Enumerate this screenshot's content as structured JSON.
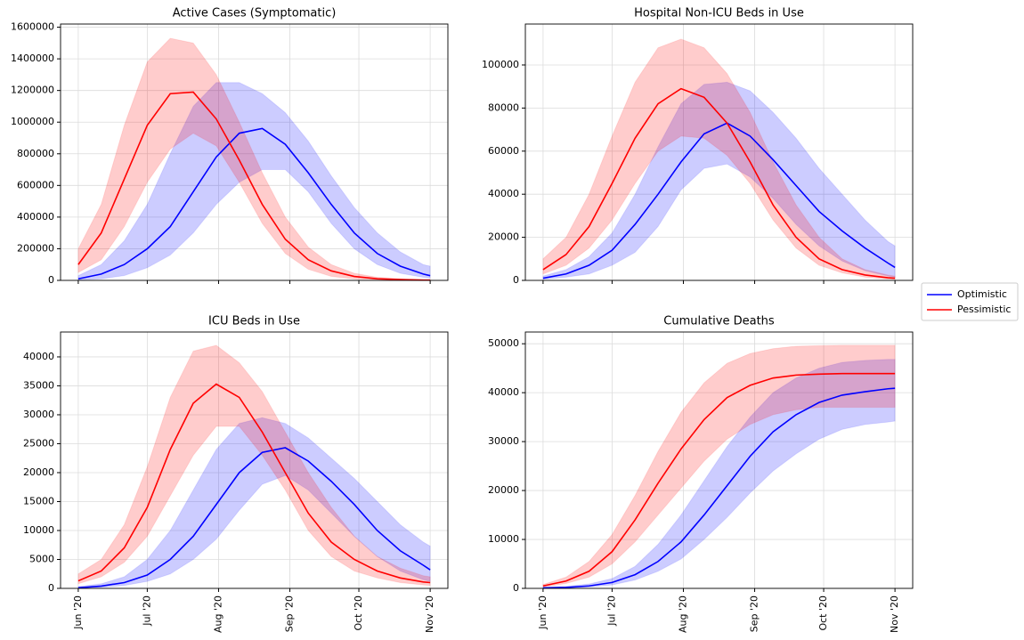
{
  "chart_data": [
    {
      "type": "line",
      "title": "Active Cases (Symptomatic)",
      "x": [
        0,
        10,
        20,
        30,
        40,
        50,
        60,
        70,
        80,
        90,
        100,
        110,
        120,
        130,
        140,
        150,
        153
      ],
      "xlim": [
        -7.7,
        160.7
      ],
      "ylim": [
        0,
        1620000
      ],
      "yticks": [
        0,
        200000,
        400000,
        600000,
        800000,
        1000000,
        1200000,
        1400000,
        1600000
      ],
      "grid": true,
      "series": [
        {
          "name": "Optimistic",
          "color": "#0000ff",
          "values": [
            10000,
            40000,
            100000,
            200000,
            340000,
            560000,
            780000,
            930000,
            960000,
            860000,
            680000,
            480000,
            300000,
            170000,
            90000,
            40000,
            30000
          ],
          "lower": [
            3000,
            10000,
            30000,
            80000,
            160000,
            300000,
            480000,
            620000,
            700000,
            700000,
            560000,
            360000,
            200000,
            100000,
            45000,
            20000,
            15000
          ],
          "upper": [
            30000,
            100000,
            250000,
            480000,
            800000,
            1100000,
            1250000,
            1250000,
            1180000,
            1060000,
            880000,
            660000,
            460000,
            300000,
            180000,
            100000,
            90000
          ]
        },
        {
          "name": "Pessimistic",
          "color": "#ff0000",
          "values": [
            100000,
            300000,
            640000,
            980000,
            1180000,
            1190000,
            1020000,
            760000,
            480000,
            260000,
            130000,
            60000,
            25000,
            10000,
            5000,
            2000,
            2000
          ],
          "lower": [
            50000,
            130000,
            340000,
            620000,
            830000,
            930000,
            850000,
            620000,
            360000,
            170000,
            70000,
            25000,
            10000,
            4000,
            2000,
            1000,
            1000
          ],
          "upper": [
            200000,
            480000,
            980000,
            1380000,
            1530000,
            1500000,
            1300000,
            1000000,
            680000,
            400000,
            210000,
            100000,
            45000,
            20000,
            10000,
            5000,
            4000
          ]
        }
      ]
    },
    {
      "type": "line",
      "title": "Hospital Non-ICU Beds in Use",
      "x": [
        0,
        10,
        20,
        30,
        40,
        50,
        60,
        70,
        80,
        90,
        100,
        110,
        120,
        130,
        140,
        150,
        153
      ],
      "xlim": [
        -7.7,
        160.7
      ],
      "ylim": [
        0,
        119000
      ],
      "yticks": [
        0,
        20000,
        40000,
        60000,
        80000,
        100000
      ],
      "grid": true,
      "series": [
        {
          "name": "Optimistic",
          "color": "#0000ff",
          "values": [
            1000,
            3000,
            7000,
            14000,
            26000,
            40000,
            55000,
            68000,
            73000,
            67000,
            56000,
            44000,
            32000,
            23000,
            15000,
            8000,
            6000
          ],
          "lower": [
            500,
            1500,
            3000,
            7000,
            13000,
            25000,
            42000,
            52000,
            54000,
            48000,
            38000,
            26000,
            16000,
            9000,
            4500,
            2000,
            1500
          ],
          "upper": [
            2000,
            5000,
            11000,
            22000,
            40000,
            62000,
            82000,
            91000,
            92000,
            88000,
            78000,
            66000,
            52000,
            40000,
            28000,
            18000,
            16000
          ]
        },
        {
          "name": "Pessimistic",
          "color": "#ff0000",
          "values": [
            5000,
            12000,
            25000,
            45000,
            66000,
            82000,
            89000,
            85000,
            73000,
            55000,
            35000,
            20000,
            10000,
            5000,
            2500,
            1200,
            1000
          ],
          "lower": [
            3000,
            7000,
            15000,
            28000,
            45000,
            60000,
            67000,
            66000,
            58000,
            45000,
            28000,
            15000,
            7000,
            3500,
            1500,
            600,
            500
          ],
          "upper": [
            10000,
            20000,
            40000,
            67000,
            92000,
            108000,
            112000,
            108000,
            96000,
            78000,
            55000,
            35000,
            20000,
            10000,
            5000,
            2500,
            2000
          ]
        }
      ]
    },
    {
      "type": "line",
      "title": "ICU Beds in Use",
      "x": [
        0,
        10,
        20,
        30,
        40,
        50,
        60,
        70,
        80,
        90,
        100,
        110,
        120,
        130,
        140,
        150,
        153
      ],
      "xlim": [
        -7.7,
        160.7
      ],
      "ylim": [
        0,
        44300
      ],
      "xticks": [
        {
          "value": 0,
          "label": "Jun '20"
        },
        {
          "value": 30,
          "label": "Jul '20"
        },
        {
          "value": 61,
          "label": "Aug '20"
        },
        {
          "value": 92,
          "label": "Sep '20"
        },
        {
          "value": 122,
          "label": "Oct '20"
        },
        {
          "value": 153,
          "label": "Nov '20"
        }
      ],
      "yticks": [
        0,
        5000,
        10000,
        15000,
        20000,
        25000,
        30000,
        35000,
        40000
      ],
      "grid": true,
      "series": [
        {
          "name": "Optimistic",
          "color": "#0000ff",
          "values": [
            100,
            400,
            1000,
            2300,
            5000,
            9000,
            14500,
            20000,
            23500,
            24300,
            22000,
            18500,
            14500,
            10000,
            6500,
            4000,
            3200
          ],
          "lower": [
            50,
            200,
            500,
            1200,
            2500,
            5000,
            8500,
            13500,
            18000,
            19500,
            17000,
            13000,
            9000,
            5500,
            3000,
            1500,
            1200
          ],
          "upper": [
            300,
            800,
            2000,
            5000,
            10000,
            17000,
            24000,
            28500,
            29500,
            28500,
            26000,
            22500,
            19000,
            15000,
            11000,
            8000,
            7300
          ]
        },
        {
          "name": "Pessimistic",
          "color": "#ff0000",
          "values": [
            1300,
            3000,
            7000,
            14000,
            24000,
            32000,
            35300,
            33000,
            27000,
            20000,
            13000,
            8000,
            5000,
            3000,
            1800,
            1100,
            1000
          ],
          "lower": [
            800,
            2000,
            4500,
            9000,
            16000,
            23000,
            28000,
            28000,
            23000,
            17000,
            10000,
            5500,
            3000,
            1800,
            1000,
            600,
            500
          ],
          "upper": [
            2500,
            5000,
            11000,
            21000,
            33000,
            41000,
            42000,
            39000,
            34000,
            27000,
            20000,
            14000,
            9000,
            5500,
            3500,
            2200,
            2000
          ]
        }
      ]
    },
    {
      "type": "line",
      "title": "Cumulative Deaths",
      "x": [
        0,
        10,
        20,
        30,
        40,
        50,
        60,
        70,
        80,
        90,
        100,
        110,
        120,
        130,
        140,
        150,
        153
      ],
      "xlim": [
        -7.7,
        160.7
      ],
      "ylim": [
        0,
        52400
      ],
      "xticks": [
        {
          "value": 0,
          "label": "Jun '20"
        },
        {
          "value": 30,
          "label": "Jul '20"
        },
        {
          "value": 61,
          "label": "Aug '20"
        },
        {
          "value": 92,
          "label": "Sep '20"
        },
        {
          "value": 122,
          "label": "Oct '20"
        },
        {
          "value": 153,
          "label": "Nov '20"
        }
      ],
      "yticks": [
        0,
        10000,
        20000,
        30000,
        40000,
        50000
      ],
      "grid": true,
      "series": [
        {
          "name": "Optimistic",
          "color": "#0000ff",
          "values": [
            100,
            200,
            500,
            1200,
            2800,
            5500,
            9500,
            15000,
            21000,
            27000,
            32000,
            35500,
            38000,
            39500,
            40200,
            40800,
            40900
          ],
          "lower": [
            50,
            100,
            300,
            700,
            1700,
            3500,
            6000,
            10000,
            14500,
            19500,
            24000,
            27500,
            30500,
            32500,
            33500,
            34000,
            34200
          ],
          "upper": [
            200,
            400,
            900,
            2000,
            4500,
            9000,
            15000,
            22000,
            29000,
            35000,
            40000,
            43000,
            45000,
            46200,
            46600,
            46800,
            46800
          ]
        },
        {
          "name": "Pessimistic",
          "color": "#ff0000",
          "values": [
            500,
            1500,
            3500,
            7500,
            14000,
            21500,
            28500,
            34500,
            39000,
            41500,
            43000,
            43600,
            43800,
            43900,
            43900,
            43900,
            43900
          ],
          "lower": [
            300,
            1000,
            2300,
            5000,
            9500,
            15000,
            20500,
            26000,
            30500,
            33500,
            35500,
            36500,
            37000,
            37000,
            37000,
            37000,
            37000
          ],
          "upper": [
            800,
            2300,
            5500,
            11000,
            19000,
            28000,
            36000,
            42000,
            46000,
            48000,
            49000,
            49500,
            49600,
            49700,
            49700,
            49700,
            49700
          ]
        }
      ]
    }
  ]
}
